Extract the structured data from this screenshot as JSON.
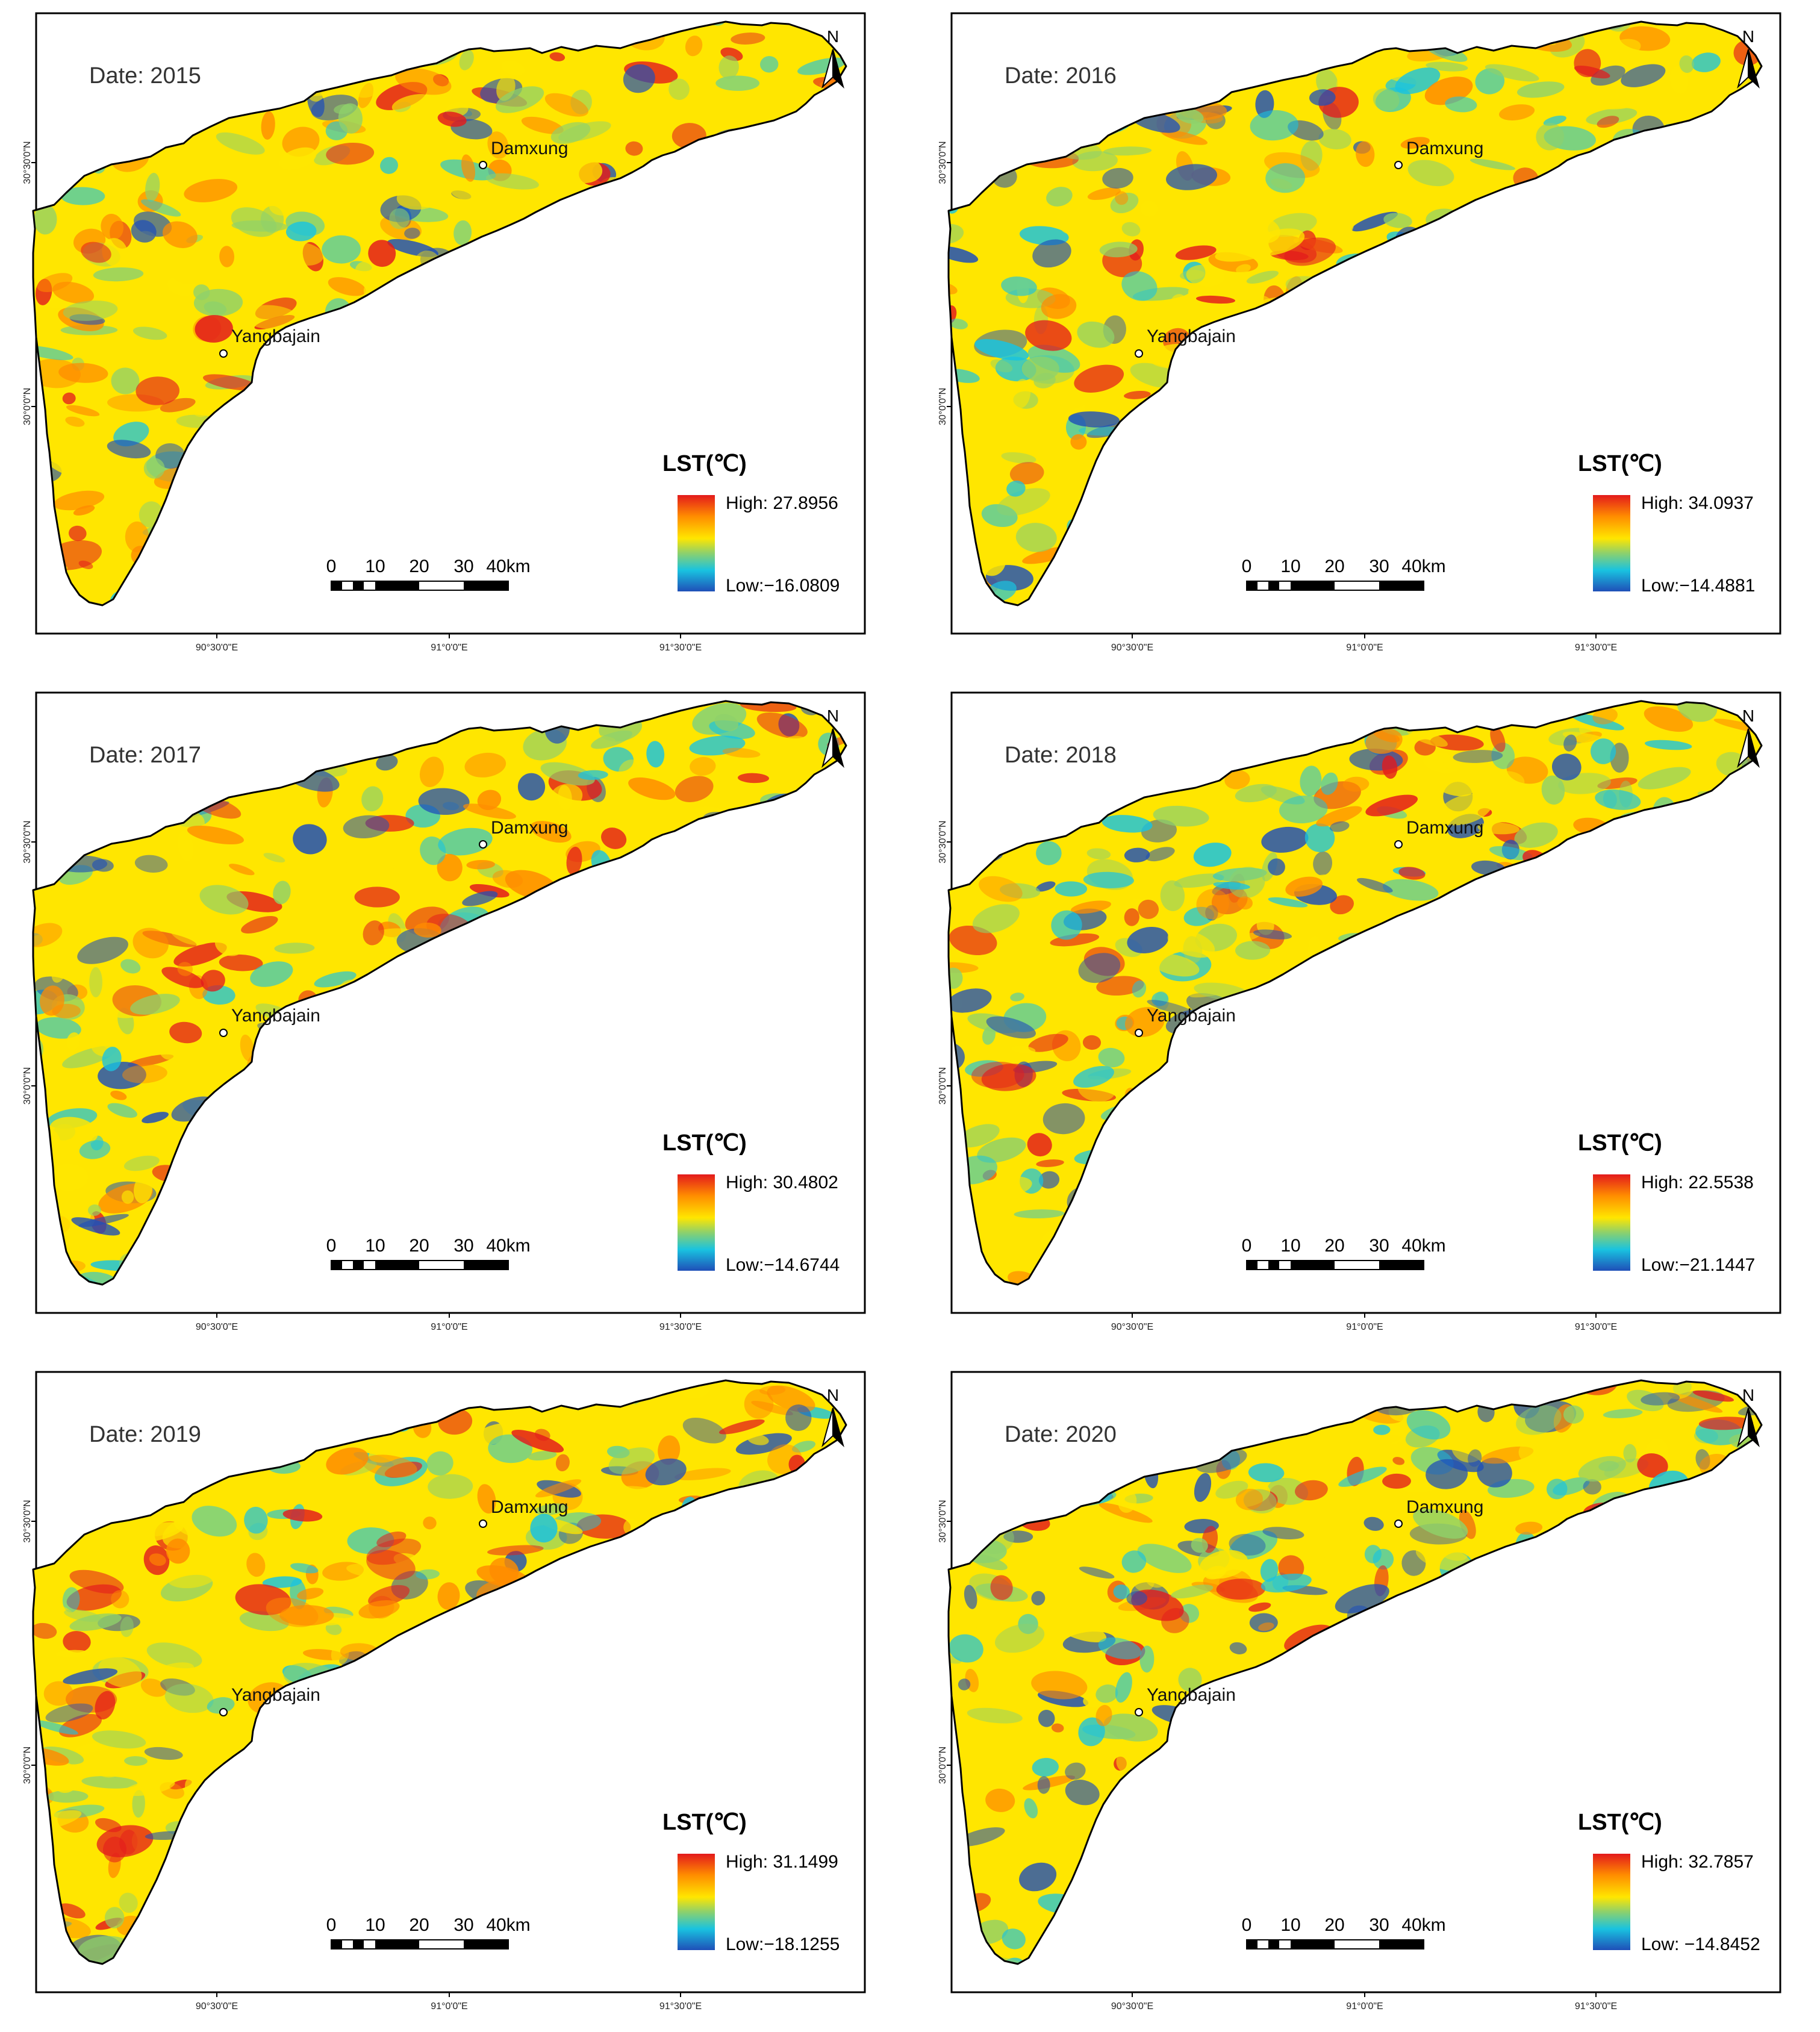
{
  "figure": {
    "legend_title": "LST(℃)",
    "north_label": "N",
    "scale_labels": [
      "0",
      "10",
      "20",
      "30",
      "40km"
    ],
    "lon_ticks": [
      "90°30'0\"E",
      "91°0'0\"E",
      "91°30'0\"E"
    ],
    "lat_ticks": [
      "30°30'0\"N",
      "30°0'0\"N"
    ],
    "places": [
      {
        "name": "Damxung"
      },
      {
        "name": "Yangbajain"
      }
    ],
    "colors": {
      "high": "#e31a1c",
      "orange": "#ff8c00",
      "yellow": "#ffe600",
      "green": "#8fd16a",
      "cyan": "#19c3e0",
      "low": "#1f4fb8",
      "outline": "#000000"
    }
  },
  "panels": [
    {
      "date": "Date: 2015",
      "high": "High: 27.8956",
      "low": "Low:−16.0809",
      "mix": [
        0.35,
        0.55,
        0.25
      ]
    },
    {
      "date": "Date: 2016",
      "high": "High: 34.0937",
      "low": "Low:−14.4881",
      "mix": [
        0.3,
        0.5,
        0.35
      ]
    },
    {
      "date": "Date: 2017",
      "high": "High: 30.4802",
      "low": "Low:−14.6744",
      "mix": [
        0.4,
        0.45,
        0.35
      ]
    },
    {
      "date": "Date: 2018",
      "high": "High: 22.5538",
      "low": "Low:−21.1447",
      "mix": [
        0.3,
        0.45,
        0.45
      ]
    },
    {
      "date": "Date: 2019",
      "high": "High: 31.1499",
      "low": "Low:−18.1255",
      "mix": [
        0.4,
        0.55,
        0.3
      ]
    },
    {
      "date": "Date: 2020",
      "high": "High: 32.7857",
      "low": "Low: −14.8452",
      "mix": [
        0.25,
        0.45,
        0.5
      ]
    }
  ]
}
